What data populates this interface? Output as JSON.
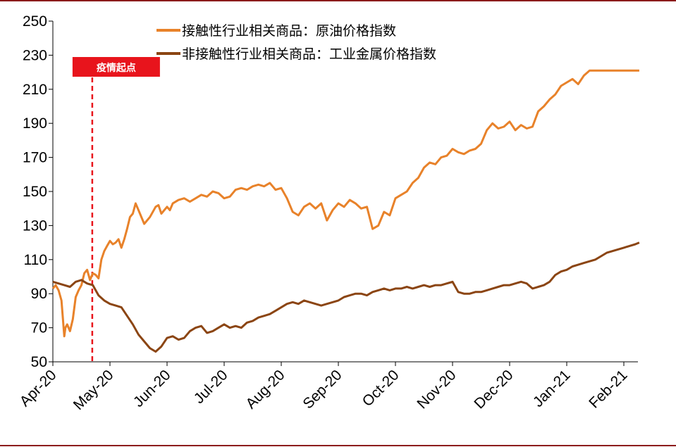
{
  "chart_data": {
    "type": "line",
    "title": "",
    "xlabel": "",
    "ylabel": "",
    "ylim": [
      50,
      250
    ],
    "yticks": [
      50,
      70,
      90,
      110,
      130,
      150,
      170,
      190,
      210,
      230,
      250
    ],
    "xticks": [
      "Apr-20",
      "May-20",
      "Jun-20",
      "Jul-20",
      "Aug-20",
      "Sep-20",
      "Oct-20",
      "Nov-20",
      "Dec-20",
      "Jan-21",
      "Feb-21"
    ],
    "legend_position": "top-center",
    "grid": false,
    "colors": {
      "oil": "#e8822a",
      "metal": "#8b4513",
      "marker": "#e8141c"
    },
    "annotation": {
      "label": "疫情起点",
      "x": 0.69
    },
    "series": [
      {
        "name": "接触性行业相关商品：原油价格指数",
        "x": [
          0.0,
          0.05,
          0.1,
          0.15,
          0.2,
          0.22,
          0.25,
          0.3,
          0.35,
          0.4,
          0.45,
          0.5,
          0.55,
          0.6,
          0.65,
          0.7,
          0.75,
          0.8,
          0.85,
          0.9,
          0.95,
          1.0,
          1.05,
          1.1,
          1.15,
          1.2,
          1.25,
          1.3,
          1.35,
          1.4,
          1.45,
          1.5,
          1.6,
          1.7,
          1.8,
          1.85,
          1.9,
          2.0,
          2.05,
          2.1,
          2.2,
          2.3,
          2.4,
          2.5,
          2.6,
          2.7,
          2.8,
          2.9,
          3.0,
          3.1,
          3.2,
          3.3,
          3.4,
          3.5,
          3.6,
          3.7,
          3.8,
          3.9,
          4.0,
          4.1,
          4.2,
          4.3,
          4.4,
          4.5,
          4.6,
          4.7,
          4.8,
          4.9,
          5.0,
          5.1,
          5.2,
          5.3,
          5.4,
          5.5,
          5.6,
          5.7,
          5.8,
          5.9,
          6.0,
          6.1,
          6.2,
          6.3,
          6.4,
          6.5,
          6.6,
          6.7,
          6.8,
          6.9,
          7.0,
          7.1,
          7.2,
          7.3,
          7.4,
          7.5,
          7.6,
          7.7,
          7.8,
          7.9,
          8.0,
          8.1,
          8.2,
          8.3,
          8.4,
          8.5,
          8.6,
          8.7,
          8.8,
          8.9,
          9.0,
          9.1,
          9.2,
          9.3,
          9.4,
          9.5,
          9.6,
          9.7,
          9.8,
          9.9,
          10.0,
          10.1,
          10.2,
          10.27
        ],
        "values": [
          93,
          95,
          92,
          86,
          65,
          70,
          72,
          68,
          75,
          88,
          92,
          95,
          102,
          104,
          98,
          102,
          101,
          99,
          110,
          115,
          118,
          121,
          119,
          120,
          122,
          117,
          122,
          128,
          135,
          137,
          143,
          139,
          131,
          135,
          141,
          142,
          137,
          141,
          139,
          143,
          145,
          146,
          144,
          146,
          148,
          147,
          150,
          149,
          146,
          147,
          151,
          152,
          151,
          153,
          154,
          153,
          155,
          151,
          152,
          146,
          138,
          136,
          141,
          143,
          140,
          143,
          133,
          139,
          143,
          141,
          145,
          143,
          140,
          141,
          128,
          130,
          138,
          136,
          146,
          148,
          150,
          155,
          158,
          164,
          167,
          166,
          170,
          171,
          175,
          173,
          172,
          174,
          175,
          178,
          186,
          190,
          187,
          188,
          191,
          186,
          189,
          187,
          188,
          197,
          200,
          204,
          207,
          212,
          214,
          216,
          213,
          218,
          221,
          221,
          221,
          221,
          221,
          221,
          221,
          221,
          221,
          221
        ]
      },
      {
        "name": "非接触性行业相关商品：工业金属价格指数",
        "x": [
          0.0,
          0.1,
          0.2,
          0.3,
          0.4,
          0.5,
          0.6,
          0.7,
          0.8,
          0.9,
          1.0,
          1.1,
          1.2,
          1.3,
          1.4,
          1.5,
          1.6,
          1.7,
          1.8,
          1.9,
          2.0,
          2.1,
          2.2,
          2.3,
          2.4,
          2.5,
          2.6,
          2.7,
          2.8,
          2.9,
          3.0,
          3.1,
          3.2,
          3.3,
          3.4,
          3.5,
          3.6,
          3.7,
          3.8,
          3.9,
          4.0,
          4.1,
          4.2,
          4.3,
          4.4,
          4.5,
          4.6,
          4.7,
          4.8,
          4.9,
          5.0,
          5.1,
          5.2,
          5.3,
          5.4,
          5.5,
          5.6,
          5.7,
          5.8,
          5.9,
          6.0,
          6.1,
          6.2,
          6.3,
          6.4,
          6.5,
          6.6,
          6.7,
          6.8,
          6.9,
          7.0,
          7.1,
          7.2,
          7.3,
          7.4,
          7.5,
          7.6,
          7.7,
          7.8,
          7.9,
          8.0,
          8.1,
          8.2,
          8.3,
          8.4,
          8.5,
          8.6,
          8.7,
          8.8,
          8.9,
          9.0,
          9.1,
          9.2,
          9.3,
          9.4,
          9.5,
          9.6,
          9.7,
          9.8,
          9.9,
          10.0,
          10.1,
          10.2,
          10.27
        ],
        "values": [
          97,
          96,
          95,
          94,
          97,
          98,
          96,
          95,
          89,
          86,
          84,
          83,
          82,
          77,
          72,
          66,
          62,
          58,
          56,
          59,
          64,
          65,
          63,
          64,
          68,
          70,
          71,
          67,
          68,
          70,
          72,
          70,
          71,
          70,
          73,
          74,
          76,
          77,
          78,
          80,
          82,
          84,
          85,
          84,
          86,
          85,
          84,
          83,
          84,
          85,
          86,
          88,
          89,
          90,
          90,
          89,
          91,
          92,
          93,
          92,
          93,
          93,
          94,
          93,
          94,
          95,
          94,
          95,
          95,
          96,
          97,
          91,
          90,
          90,
          91,
          91,
          92,
          93,
          94,
          95,
          95,
          96,
          97,
          96,
          93,
          94,
          95,
          97,
          101,
          103,
          104,
          106,
          107,
          108,
          109,
          110,
          112,
          114,
          115,
          116,
          117,
          118,
          119,
          120
        ]
      }
    ]
  }
}
